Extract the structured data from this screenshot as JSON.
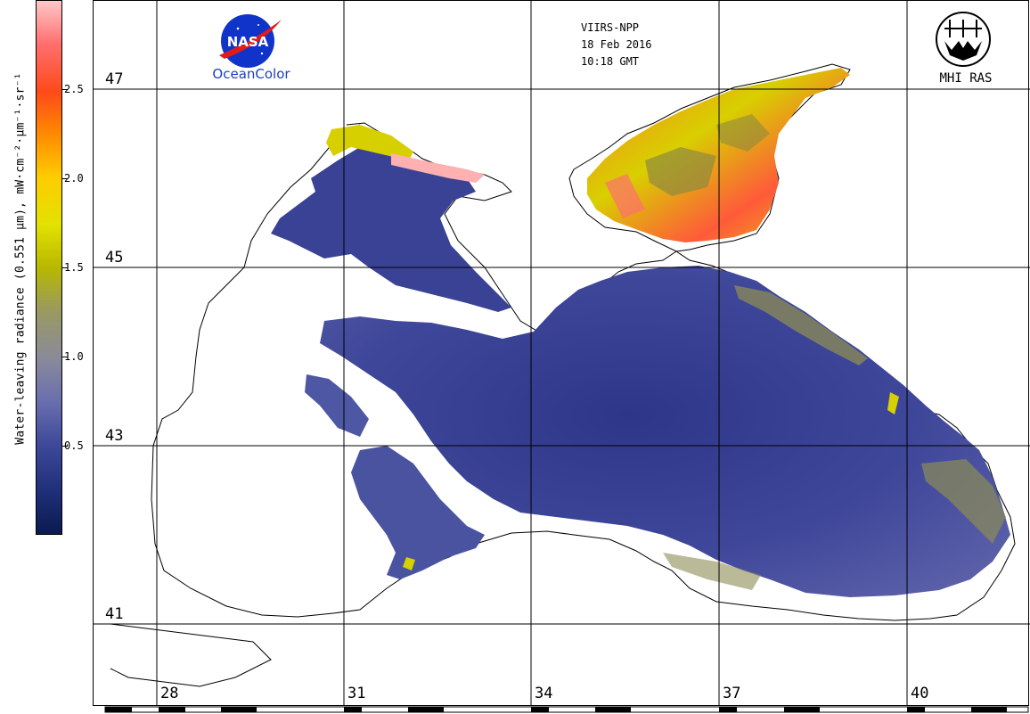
{
  "colorbar": {
    "title": "Water-leaving radiance (0.551 μm), mW·cm⁻²·μm⁻¹·sr⁻¹",
    "ticks": [
      "2.5",
      "2.0",
      "1.5",
      "1.0",
      "0.5"
    ],
    "tick_values": [
      2.5,
      2.0,
      1.5,
      1.0,
      0.5
    ],
    "range": [
      0,
      3.0
    ],
    "colors": [
      "#0b1a4f",
      "#1f2f7a",
      "#3f4a9a",
      "#6a6fae",
      "#8a8a9a",
      "#9a9a60",
      "#b8b800",
      "#e2e200",
      "#ffcc00",
      "#ff8a00",
      "#ff4a1a",
      "#ff6f6f",
      "#ffc8c8"
    ]
  },
  "map": {
    "lat_labels": [
      "47",
      "45",
      "43",
      "41"
    ],
    "lon_labels": [
      "28",
      "31",
      "34",
      "37",
      "40"
    ],
    "sea_colors": {
      "deep": "#343c8c",
      "mid": "#5a5fa8",
      "light": "#7d80b6",
      "coast": "#8c8c55"
    },
    "azov_colors": {
      "yellow": "#d7d000",
      "orange": "#ff7b2a",
      "red": "#ff4b3a",
      "pink": "#ffb0b0",
      "olive": "#8e8a3e"
    }
  },
  "header": {
    "sensor": "VIIRS-NPP",
    "date": "18 Feb 2016",
    "time": "10:18 GMT"
  },
  "logos": {
    "nasa_text": "NASA",
    "nasa_caption": "OceanColor",
    "mhi_caption": "MHI RAS",
    "nasa_color": "#1033c9",
    "oceancolor_color": "#1b3fc6"
  }
}
